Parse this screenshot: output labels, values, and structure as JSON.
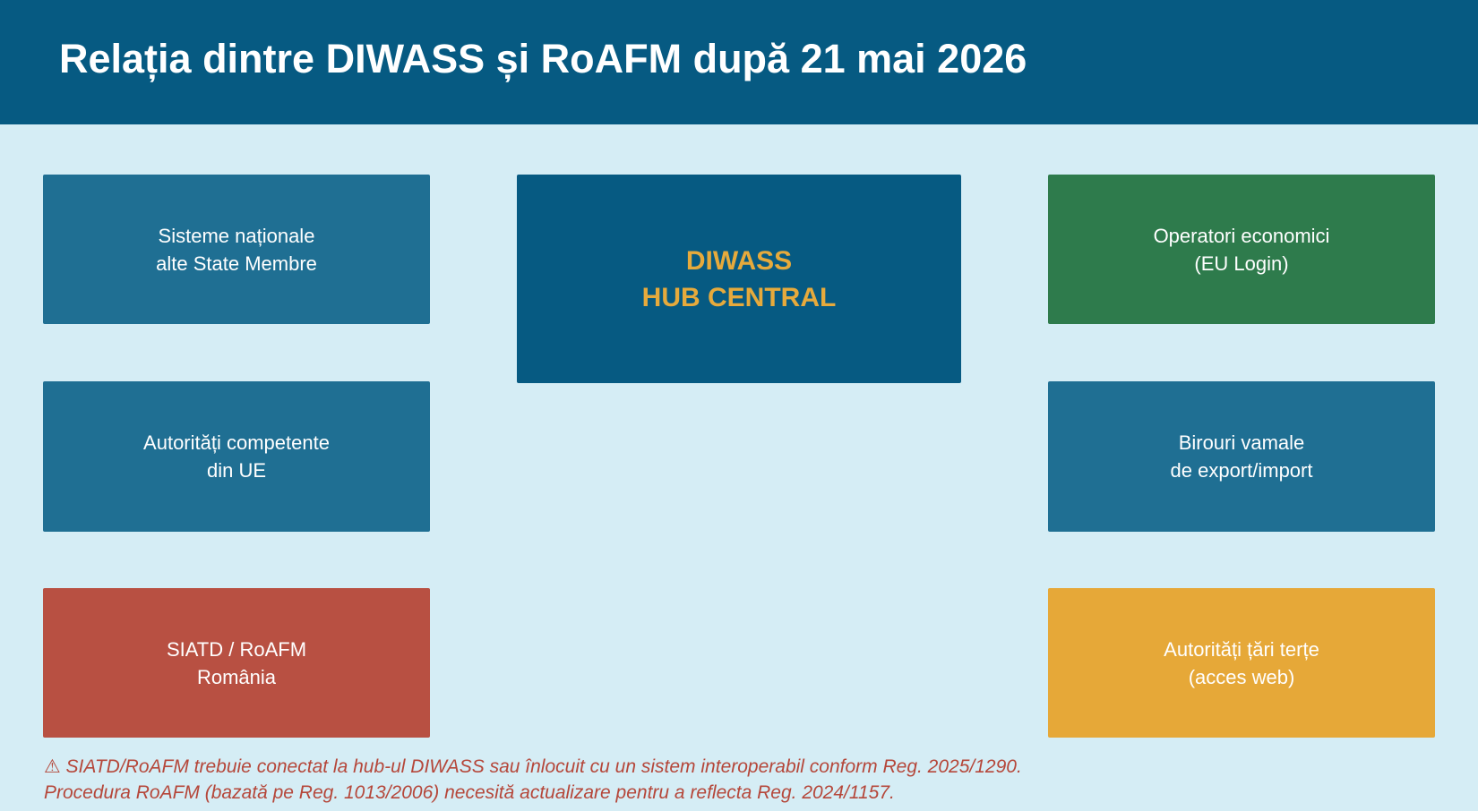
{
  "header": {
    "title": "Relația dintre DIWASS și RoAFM după 21 mai 2026"
  },
  "colors": {
    "header": "#065a82",
    "background": "#d5edf5",
    "blue": "#1f6f93",
    "green": "#2e7b4c",
    "red": "#b85042",
    "yellow": "#e6a838",
    "hub_text": "#e6aa3c",
    "note": "#b5473a"
  },
  "hub": {
    "line1": "DIWASS",
    "line2": "HUB CENTRAL"
  },
  "nodes": [
    {
      "line1": "Sisteme naționale",
      "line2": "alte State Membre"
    },
    {
      "line1": "Autorități competente",
      "line2": "din UE"
    },
    {
      "line1": "SIATD / RoAFM",
      "line2": "România"
    },
    {
      "line1": "Operatori economici",
      "line2": "(EU Login)"
    },
    {
      "line1": "Birouri vamale",
      "line2": "de export/import"
    },
    {
      "line1": "Autorități țări terțe",
      "line2": "(acces web)"
    }
  ],
  "notes": {
    "icon": "warning-icon",
    "icon_glyph": "⚠",
    "line1": "SIATD/RoAFM trebuie conectat la hub-ul DIWASS sau înlocuit cu un sistem interoperabil conform Reg. 2025/1290.",
    "line2": "Procedura RoAFM (bazată pe Reg. 1013/2006) necesită actualizare pentru a reflecta Reg. 2024/1157."
  }
}
